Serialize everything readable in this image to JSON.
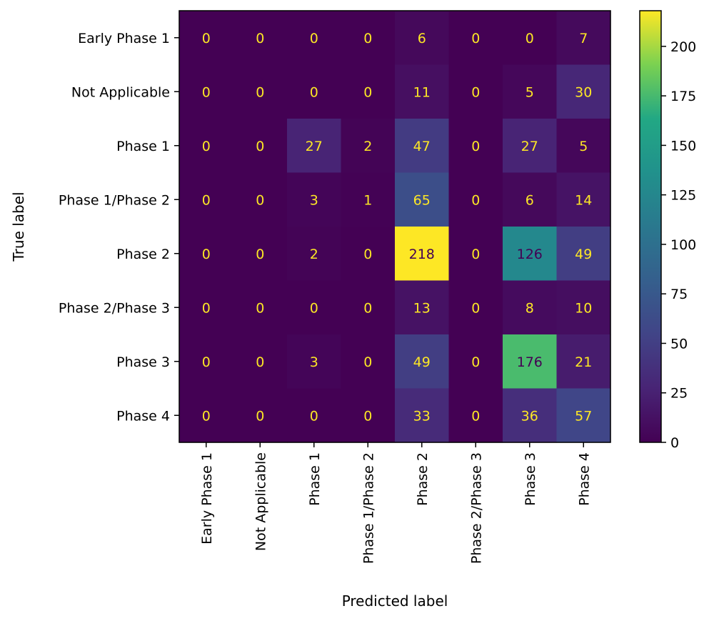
{
  "chart_data": {
    "type": "heatmap",
    "title": "",
    "xlabel": "Predicted label",
    "ylabel": "True label",
    "x_categories": [
      "Early Phase 1",
      "Not Applicable",
      "Phase 1",
      "Phase 1/Phase 2",
      "Phase 2",
      "Phase 2/Phase 3",
      "Phase 3",
      "Phase 4"
    ],
    "y_categories": [
      "Early Phase 1",
      "Not Applicable",
      "Phase 1",
      "Phase 1/Phase 2",
      "Phase 2",
      "Phase 2/Phase 3",
      "Phase 3",
      "Phase 4"
    ],
    "values": [
      [
        0,
        0,
        0,
        0,
        6,
        0,
        0,
        7
      ],
      [
        0,
        0,
        0,
        0,
        11,
        0,
        5,
        30
      ],
      [
        0,
        0,
        27,
        2,
        47,
        0,
        27,
        5
      ],
      [
        0,
        0,
        3,
        1,
        65,
        0,
        6,
        14
      ],
      [
        0,
        0,
        2,
        0,
        218,
        0,
        126,
        49
      ],
      [
        0,
        0,
        0,
        0,
        13,
        0,
        8,
        10
      ],
      [
        0,
        0,
        3,
        0,
        49,
        0,
        176,
        21
      ],
      [
        0,
        0,
        0,
        0,
        33,
        0,
        36,
        57
      ]
    ],
    "colormap": "viridis",
    "colorbar": {
      "range": [
        0,
        218
      ],
      "ticks": [
        0,
        25,
        50,
        75,
        100,
        125,
        150,
        175,
        200
      ]
    },
    "colors": {
      "text_light": "#fde725",
      "text_dark": "#440154"
    }
  }
}
